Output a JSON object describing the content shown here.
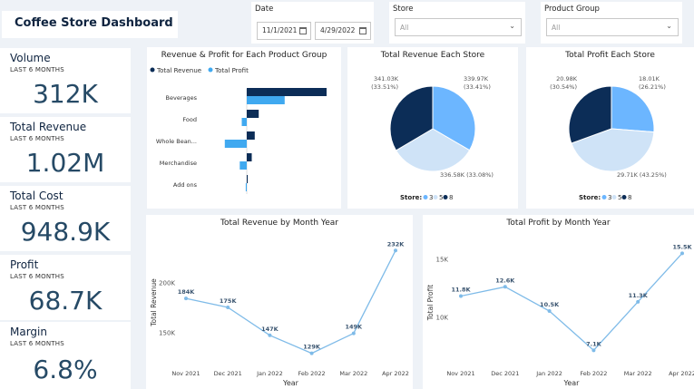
{
  "header": {
    "title": "Coffee Store Dashboard"
  },
  "filters": {
    "date": {
      "label": "Date",
      "start": "11/1/2021",
      "end": "4/29/2022"
    },
    "store": {
      "label": "Store",
      "value": "All"
    },
    "product_group": {
      "label": "Product Group",
      "value": "All"
    }
  },
  "kpis": [
    {
      "label": "Volume",
      "sub": "LAST 6 MONTHS",
      "value": "312K"
    },
    {
      "label": "Total Revenue",
      "sub": "LAST 6 MONTHS",
      "value": "1.02M"
    },
    {
      "label": "Total Cost",
      "sub": "LAST 6 MONTHS",
      "value": "948.9K"
    },
    {
      "label": "Profit",
      "sub": "LAST 6 MONTHS",
      "value": "68.7K"
    },
    {
      "label": "Margin",
      "sub": "LAST 6 MONTHS",
      "value": "6.8%"
    }
  ],
  "colors": {
    "dark": "#0c2d57",
    "light": "#40a9f0",
    "pale": "#cfe3f7",
    "mid": "#6cb6ff",
    "line": "#7fbbe8"
  },
  "chart_data": [
    {
      "type": "bar",
      "orientation": "horizontal",
      "title": "Revenue & Profit for Each Product Group",
      "categories": [
        "Beverages",
        "Food",
        "Whole Bean...",
        "Merchandise",
        "Add ons"
      ],
      "series": [
        {
          "name": "Total Revenue",
          "values": [
            80,
            12,
            8,
            5,
            1
          ]
        },
        {
          "name": "Total Profit",
          "values": [
            38,
            -5,
            -22,
            -7,
            -1
          ]
        }
      ],
      "legend": [
        "Total Revenue",
        "Total Profit"
      ]
    },
    {
      "type": "pie",
      "title": "Total Revenue Each Store",
      "legend_title": "Store:",
      "legend": [
        "3",
        "5",
        "8"
      ],
      "slices": [
        {
          "store": "3",
          "value": 339.97,
          "label": "339.97K",
          "pct": "(33.41%)"
        },
        {
          "store": "5",
          "value": 336.58,
          "label": "336.58K (33.08%)",
          "pct": ""
        },
        {
          "store": "8",
          "value": 341.03,
          "label": "341.03K",
          "pct": "(33.51%)"
        }
      ]
    },
    {
      "type": "pie",
      "title": "Total Profit Each Store",
      "legend_title": "Store:",
      "legend": [
        "3",
        "5",
        "8"
      ],
      "slices": [
        {
          "store": "3",
          "value": 18.01,
          "label": "18.01K",
          "pct": "(26.21%)"
        },
        {
          "store": "5",
          "value": 29.71,
          "label": "29.71K (43.25%)",
          "pct": ""
        },
        {
          "store": "8",
          "value": 20.98,
          "label": "20.98K",
          "pct": "(30.54%)"
        }
      ]
    },
    {
      "type": "line",
      "title": "Total Revenue by Month Year",
      "xlabel": "Year",
      "ylabel": "Total Revenue",
      "categories": [
        "Nov 2021",
        "Dec 2021",
        "Jan 2022",
        "Feb 2022",
        "Mar 2022",
        "Apr 2022"
      ],
      "values": [
        184,
        175,
        147,
        129,
        149,
        232
      ],
      "labels": [
        "184K",
        "175K",
        "147K",
        "129K",
        "149K",
        "232K"
      ],
      "yticks": [
        "200K",
        "150K"
      ],
      "ytick_values": [
        200,
        150
      ],
      "ylim": [
        125,
        235
      ]
    },
    {
      "type": "line",
      "title": "Total Profit by Month Year",
      "xlabel": "Year",
      "ylabel": "Total Profit",
      "categories": [
        "Nov 2021",
        "Dec 2021",
        "Jan 2022",
        "Feb 2022",
        "Mar 2022",
        "Apr 2022"
      ],
      "values": [
        11.8,
        12.6,
        10.5,
        7.1,
        11.3,
        15.5
      ],
      "labels": [
        "11.8K",
        "12.6K",
        "10.5K",
        "7.1K",
        "11.3K",
        "15.5K"
      ],
      "yticks": [
        "15K",
        "10K"
      ],
      "ytick_values": [
        15,
        10
      ],
      "ylim": [
        6.5,
        16
      ]
    }
  ]
}
